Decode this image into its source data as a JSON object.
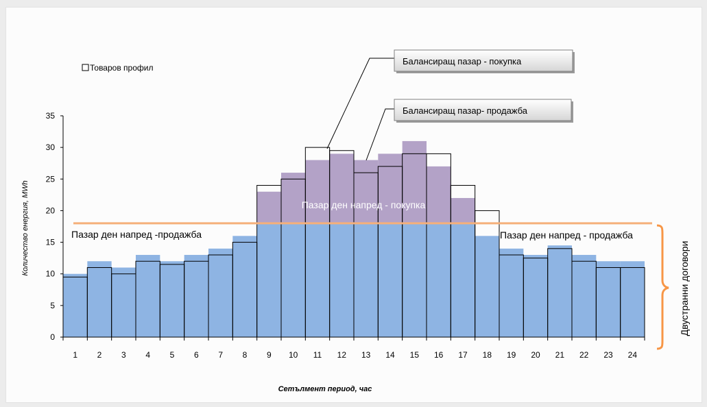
{
  "chart_data": {
    "type": "bar",
    "categories": [
      "1",
      "2",
      "3",
      "4",
      "5",
      "6",
      "7",
      "8",
      "9",
      "10",
      "11",
      "12",
      "13",
      "14",
      "15",
      "16",
      "17",
      "18",
      "19",
      "20",
      "21",
      "22",
      "23",
      "24"
    ],
    "series": [
      {
        "name": "Товаров профил",
        "values": [
          9.5,
          11,
          10,
          12,
          11.5,
          12,
          13,
          15,
          24,
          25,
          30,
          29.5,
          26,
          27,
          29,
          29,
          24,
          20,
          13,
          12.5,
          14,
          12,
          11,
          11
        ],
        "color": "#ffffff",
        "stroke": "#000000"
      },
      {
        "name": "",
        "values": [
          10,
          12,
          11,
          13,
          12,
          13,
          14,
          16,
          23,
          26,
          28,
          29,
          28,
          29,
          31,
          27,
          22,
          16,
          14,
          13,
          14.5,
          13,
          12,
          12
        ],
        "color": "#8eb4e3",
        "highlight_color": "#b3a2c7"
      }
    ],
    "threshold": 18,
    "xlabel": "Сетълмент период,  час",
    "ylabel": "Количество енергия, MWh",
    "ylim": [
      0,
      35
    ],
    "yticks": [
      0,
      5,
      10,
      15,
      20,
      25,
      30,
      35
    ],
    "legend": "top-left",
    "grid": false,
    "annotations": {
      "callout_buy": "Балансиращ пазар - покупка",
      "callout_sell": "Балансиращ пазар- продажба",
      "dayahead_buy": "Пазар ден напред - покупка",
      "dayahead_sell_left": "Пазар ден напред -продажба",
      "dayahead_sell_right": "Пазар ден напред - продажба",
      "bilateral": "Двустранни договори"
    },
    "colors": {
      "threshold_line": "#f5b07a",
      "brace": "#f79646"
    }
  }
}
